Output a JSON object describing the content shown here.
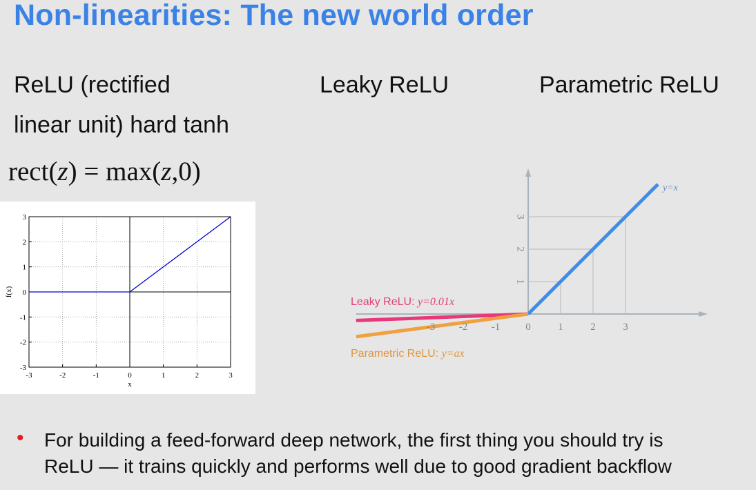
{
  "title": "Non-linearities: The new world order",
  "headers": {
    "relu_line1": "ReLU (rectified",
    "relu_line2": "linear unit) hard tanh",
    "leaky": "Leaky ReLU",
    "parametric": "Parametric ReLU"
  },
  "formula": {
    "lhs_fn": "rect(",
    "lhs_var": "z",
    "lhs_close": ")",
    "eq": " = ",
    "rhs_fn": "max(",
    "rhs_var": "z",
    "rhs_rest": ",0)"
  },
  "bullet": {
    "line1": "For building a feed-forward deep network, the first thing you should try is",
    "line2": "ReLU — it trains quickly and performs well due to good gradient backflow"
  },
  "chart_data": [
    {
      "type": "line",
      "xlabel": "x",
      "ylabel": "f(x)",
      "xlim": [
        -3,
        3
      ],
      "ylim": [
        -3,
        3
      ],
      "xticks": [
        "-3",
        "-2",
        "-1",
        "0",
        "1",
        "2",
        "3"
      ],
      "yticks": [
        "3",
        "2",
        "1",
        "0",
        "-1",
        "-2",
        "-3"
      ],
      "grid": true,
      "series": [
        {
          "x": [
            -3,
            0,
            3
          ],
          "y": [
            0,
            0,
            3
          ],
          "color": "#0000cc"
        }
      ]
    },
    {
      "type": "line",
      "xticks": [
        "-3",
        "-2",
        "-1",
        "0",
        "1",
        "2",
        "3"
      ],
      "yticks": [
        "1",
        "2",
        "3"
      ],
      "annotations": {
        "identity": "y=x",
        "leaky_prefix": "Leaky ReLU: ",
        "leaky_eq": "y=0.01x",
        "param_prefix": "Parametric ReLU: ",
        "param_eq": "y=ax"
      },
      "series": [
        {
          "x": [
            0,
            4
          ],
          "y": [
            0,
            4
          ],
          "color": "#3d8eea"
        },
        {
          "x": [
            -5.3,
            0
          ],
          "y": [
            -0.2,
            0
          ],
          "color": "#e8387a"
        },
        {
          "x": [
            -5.3,
            0
          ],
          "y": [
            -0.7,
            0
          ],
          "color": "#f0a040"
        }
      ]
    }
  ]
}
